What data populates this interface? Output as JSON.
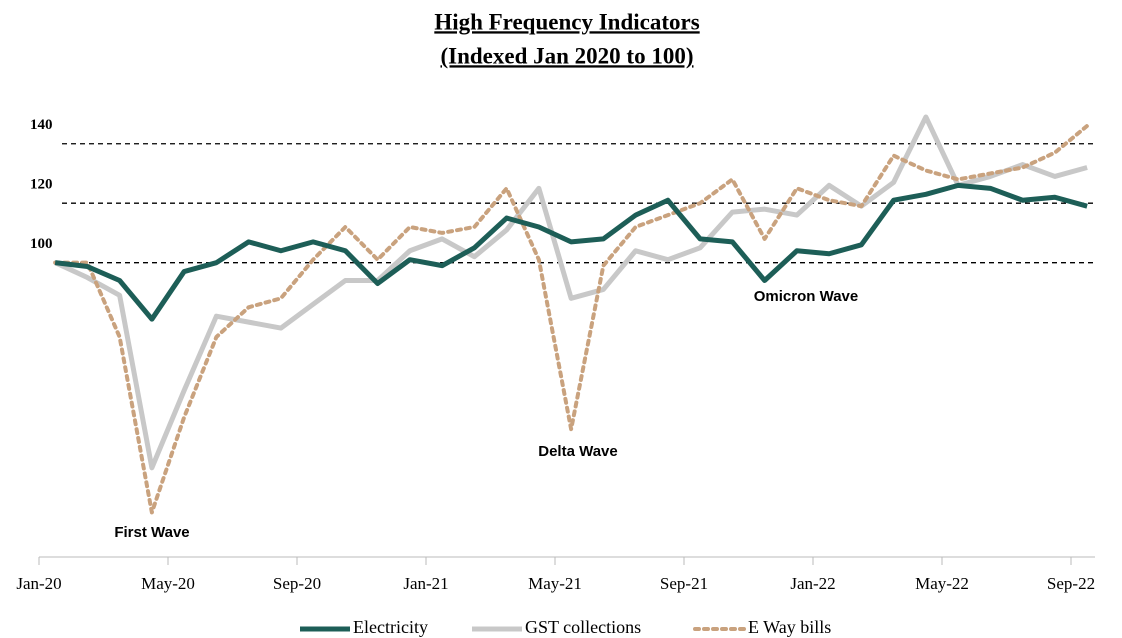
{
  "chart_data": {
    "type": "line",
    "title": "High Frequency Indicators",
    "subtitle": "(Indexed Jan 2020 to 100)",
    "categories": [
      "Jan-20",
      null,
      null,
      null,
      "May-20",
      null,
      null,
      null,
      "Sep-20",
      null,
      null,
      null,
      "Jan-21",
      null,
      null,
      null,
      "May-21",
      null,
      null,
      null,
      "Sep-21",
      null,
      null,
      null,
      "Jan-22",
      null,
      null,
      null,
      "May-22",
      null,
      null,
      null,
      "Sep-22"
    ],
    "series": [
      {
        "name": "Electricity",
        "color": "#1d5e57",
        "dashed": false,
        "values": [
          100,
          98.7,
          94,
          81,
          97,
          100,
          107,
          104,
          107,
          104,
          93,
          101,
          99,
          105,
          115,
          112,
          107,
          108,
          116,
          121,
          108,
          107,
          94,
          104,
          103,
          106,
          121,
          123,
          126,
          125,
          121,
          122,
          119
        ]
      },
      {
        "name": "GST collections",
        "color": "#c8c8c8",
        "dashed": false,
        "values": [
          100,
          95,
          89,
          31,
          57,
          82,
          80,
          78,
          86,
          94,
          94,
          104,
          108,
          102,
          111,
          125,
          88,
          91,
          104,
          101,
          105,
          117,
          118,
          116,
          126,
          119,
          127,
          149,
          126,
          129,
          133,
          129,
          132
        ]
      },
      {
        "name": "E Way bills",
        "color": "#c9a27e",
        "dashed": true,
        "values": [
          100,
          100,
          75,
          16,
          48,
          75,
          85,
          88,
          101,
          112,
          101,
          112,
          110,
          112,
          125,
          101,
          44,
          99,
          112,
          116,
          120,
          128,
          108,
          125,
          121,
          119,
          136,
          131,
          128,
          130,
          132,
          137,
          146
        ]
      }
    ],
    "ylim": [
      0,
      150
    ],
    "yticks": [
      100,
      120,
      140
    ],
    "grid": true,
    "legend": "bottom",
    "annotations": [
      "First Wave",
      "Delta Wave",
      "Omicron Wave"
    ]
  }
}
